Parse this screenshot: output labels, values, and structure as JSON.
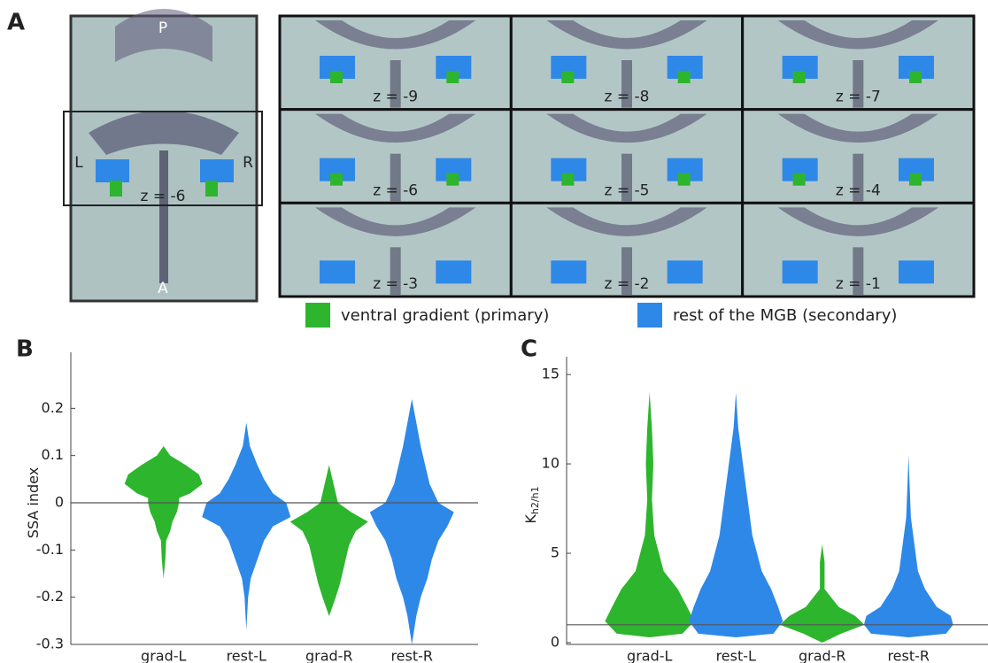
{
  "panel_a": {
    "panel_label": "A",
    "overview": {
      "top": "P",
      "left": "L",
      "right": "R",
      "slice": "z = -6",
      "bottom": "A"
    },
    "slices": [
      "z = -9",
      "z = -8",
      "z = -7",
      "z = -6",
      "z = -5",
      "z = -4",
      "z = -3",
      "z = -2",
      "z = -1"
    ],
    "legend": [
      {
        "name": "ventral gradient (primary)",
        "color": "#2db52d"
      },
      {
        "name": "rest of the MGB (secondary)",
        "color": "#2e88e8"
      }
    ]
  },
  "chart_data": [
    {
      "type": "violin",
      "panel_label": "B",
      "y_label": "SSA index",
      "categories": [
        "grad-L",
        "rest-L",
        "grad-R",
        "rest-R"
      ],
      "ylim": [
        -0.3,
        0.3
      ],
      "yticks": [
        0.2,
        0.1,
        0,
        -0.1,
        -0.2,
        -0.3
      ],
      "hline": 0,
      "violins": [
        {
          "color": "#2db52d",
          "y": [
            0.12,
            0.1,
            0.08,
            0.06,
            0.04,
            0.02,
            0.01,
            0,
            -0.02,
            -0.04,
            -0.06,
            -0.08,
            -0.12,
            -0.16
          ],
          "width": [
            0,
            0.15,
            0.5,
            0.8,
            0.88,
            0.6,
            0.35,
            0.35,
            0.3,
            0.2,
            0.15,
            0.06,
            0.04,
            0
          ]
        },
        {
          "color": "#2e88e8",
          "y": [
            0.17,
            0.12,
            0.08,
            0.05,
            0.02,
            0,
            -0.03,
            -0.05,
            -0.08,
            -0.12,
            -0.16,
            -0.2,
            -0.27
          ],
          "width": [
            0,
            0.08,
            0.25,
            0.4,
            0.6,
            0.9,
            1,
            0.6,
            0.4,
            0.25,
            0.1,
            0.04,
            0
          ]
        },
        {
          "color": "#2db52d",
          "y": [
            0.08,
            0.04,
            0,
            -0.02,
            -0.04,
            -0.06,
            -0.09,
            -0.13,
            -0.17,
            -0.2,
            -0.24
          ],
          "width": [
            0,
            0.1,
            0.2,
            0.5,
            0.88,
            0.6,
            0.45,
            0.35,
            0.25,
            0.15,
            0
          ]
        },
        {
          "color": "#2e88e8",
          "y": [
            0.22,
            0.17,
            0.12,
            0.08,
            0.04,
            0,
            -0.02,
            -0.05,
            -0.08,
            -0.12,
            -0.16,
            -0.2,
            -0.24,
            -0.3
          ],
          "width": [
            0,
            0.1,
            0.2,
            0.3,
            0.4,
            0.6,
            0.95,
            0.8,
            0.6,
            0.45,
            0.35,
            0.2,
            0.1,
            0
          ]
        }
      ]
    },
    {
      "type": "violin",
      "panel_label": "C",
      "y_label": "K",
      "y_label_sub": "h2/h1",
      "categories": [
        "grad-L",
        "rest-L",
        "grad-R",
        "rest-R"
      ],
      "ylim": [
        0,
        15.5
      ],
      "yticks": [
        0,
        5,
        10,
        15
      ],
      "hline": 1,
      "violins": [
        {
          "color": "#2db52d",
          "y": [
            14,
            12,
            10,
            8,
            6,
            5,
            4,
            3,
            2,
            1.2,
            0.5,
            0.3
          ],
          "width": [
            0,
            0.05,
            0.08,
            0.05,
            0.1,
            0.2,
            0.3,
            0.6,
            0.8,
            0.95,
            0.7,
            0
          ]
        },
        {
          "color": "#2e88e8",
          "y": [
            14,
            12,
            10,
            8,
            6,
            4,
            3,
            2,
            1.2,
            0.5,
            0.3
          ],
          "width": [
            0,
            0.05,
            0.15,
            0.25,
            0.35,
            0.55,
            0.75,
            0.9,
            1,
            0.8,
            0
          ]
        },
        {
          "color": "#2db52d",
          "y": [
            5.5,
            4.5,
            3,
            2.5,
            2,
            1.5,
            1,
            0.5,
            0
          ],
          "width": [
            0,
            0.05,
            0.05,
            0.2,
            0.35,
            0.7,
            0.9,
            0.4,
            0
          ]
        },
        {
          "color": "#2e88e8",
          "y": [
            10.5,
            9,
            7,
            5,
            4,
            3,
            2,
            1.5,
            1,
            0.5,
            0.3
          ],
          "width": [
            0,
            0.02,
            0.05,
            0.15,
            0.2,
            0.35,
            0.6,
            0.9,
            0.95,
            0.8,
            0
          ]
        }
      ]
    }
  ]
}
